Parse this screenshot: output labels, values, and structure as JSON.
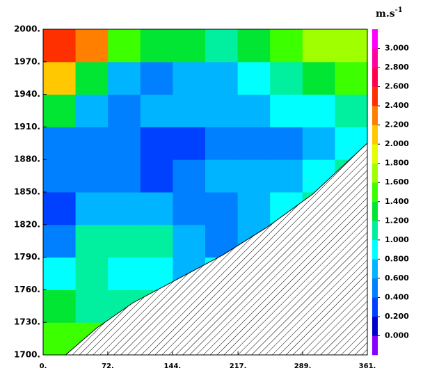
{
  "chart_data": {
    "type": "contour",
    "units": "m.s",
    "units_exponent": "-1",
    "xlim": [
      0,
      361
    ],
    "ylim": [
      1700,
      2000
    ],
    "xticks": [
      {
        "value": 0,
        "label": "0."
      },
      {
        "value": 72,
        "label": "72."
      },
      {
        "value": 144,
        "label": "144."
      },
      {
        "value": 217,
        "label": "217."
      },
      {
        "value": 289,
        "label": "289."
      },
      {
        "value": 361,
        "label": "361."
      }
    ],
    "yticks": [
      {
        "value": 1700,
        "label": "1700."
      },
      {
        "value": 1730,
        "label": "1730."
      },
      {
        "value": 1760,
        "label": "1760."
      },
      {
        "value": 1790,
        "label": "1790."
      },
      {
        "value": 1820,
        "label": "1820."
      },
      {
        "value": 1850,
        "label": "1850."
      },
      {
        "value": 1880,
        "label": "1880."
      },
      {
        "value": 1910,
        "label": "1910."
      },
      {
        "value": 1940,
        "label": "1940."
      },
      {
        "value": 1970,
        "label": "1970."
      },
      {
        "value": 2000,
        "label": "2000."
      }
    ],
    "x": [
      0,
      36.1,
      72.2,
      108.3,
      144.4,
      180.5,
      216.6,
      252.7,
      288.8,
      324.9,
      361
    ],
    "y": [
      1700,
      1730,
      1760,
      1790,
      1820,
      1850,
      1880,
      1910,
      1940,
      1970,
      2000
    ],
    "z": [
      [
        1.5,
        1.4,
        1.0,
        1.0,
        1.0,
        1.0,
        1.0,
        1.0,
        1.0,
        1.0
      ],
      [
        1.2,
        1.1,
        1.0,
        1.0,
        1.0,
        1.0,
        1.0,
        1.0,
        1.0,
        1.0
      ],
      [
        0.9,
        1.0,
        0.9,
        0.8,
        0.6,
        0.8,
        1.0,
        1.0,
        1.0,
        1.0
      ],
      [
        0.5,
        1.0,
        1.1,
        1.0,
        0.6,
        0.5,
        0.7,
        1.0,
        1.0,
        1.0
      ],
      [
        0.3,
        0.6,
        0.7,
        0.6,
        0.5,
        0.5,
        0.6,
        0.8,
        1.0,
        1.0
      ],
      [
        0.4,
        0.5,
        0.5,
        0.3,
        0.5,
        0.6,
        0.6,
        0.7,
        0.9,
        1.0
      ],
      [
        0.4,
        0.5,
        0.4,
        0.3,
        0.3,
        0.4,
        0.5,
        0.5,
        0.6,
        0.8
      ],
      [
        1.2,
        0.6,
        0.5,
        0.6,
        0.7,
        0.6,
        0.7,
        0.8,
        0.9,
        1.0
      ],
      [
        2.0,
        1.3,
        0.7,
        0.5,
        0.6,
        0.7,
        0.8,
        1.0,
        1.3,
        1.4
      ],
      [
        2.5,
        2.2,
        1.4,
        1.3,
        1.2,
        1.1,
        1.3,
        1.4,
        1.7,
        1.6
      ]
    ],
    "mask": {
      "x": [
        25,
        60,
        100,
        150,
        200,
        250,
        300,
        361
      ],
      "y": [
        1700,
        1725,
        1748,
        1770,
        1792,
        1818,
        1848,
        1895
      ]
    },
    "levels": [
      -0.2,
      0,
      0.2,
      0.4,
      0.6,
      0.8,
      1.0,
      1.2,
      1.4,
      1.6,
      1.8,
      2.0,
      2.2,
      2.4,
      2.6,
      2.8,
      3.0,
      3.2
    ],
    "colors": [
      "#8a00ff",
      "#0000c8",
      "#0040ff",
      "#0080ff",
      "#00b4ff",
      "#00ffff",
      "#00f0a0",
      "#00e632",
      "#3cff00",
      "#a0ff00",
      "#e6ff00",
      "#ffc800",
      "#ff8000",
      "#ff3000",
      "#ff0050",
      "#ff00a0",
      "#ff00ff"
    ],
    "cticks": [
      {
        "value": 0,
        "label": "0.000"
      },
      {
        "value": 0.2,
        "label": "0.200"
      },
      {
        "value": 0.4,
        "label": "0.400"
      },
      {
        "value": 0.6,
        "label": "0.600"
      },
      {
        "value": 0.8,
        "label": "0.800"
      },
      {
        "value": 1.0,
        "label": "1.000"
      },
      {
        "value": 1.2,
        "label": "1.200"
      },
      {
        "value": 1.4,
        "label": "1.400"
      },
      {
        "value": 1.6,
        "label": "1.600"
      },
      {
        "value": 1.8,
        "label": "1.800"
      },
      {
        "value": 2.0,
        "label": "2.000"
      },
      {
        "value": 2.2,
        "label": "2.200"
      },
      {
        "value": 2.4,
        "label": "2.400"
      },
      {
        "value": 2.6,
        "label": "2.600"
      },
      {
        "value": 2.8,
        "label": "2.800"
      },
      {
        "value": 3.0,
        "label": "3.000"
      }
    ]
  }
}
